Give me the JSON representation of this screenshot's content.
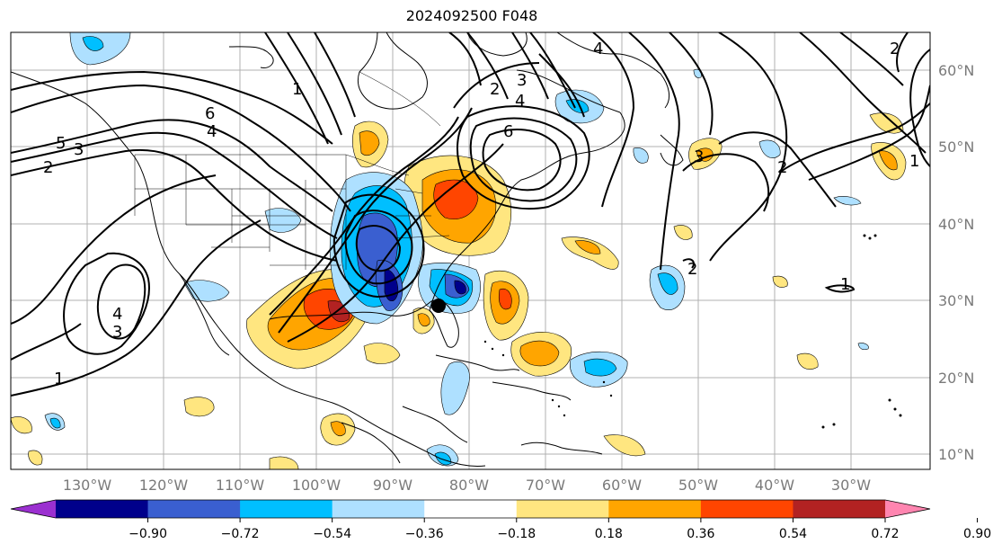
{
  "title": "2024092500 F048",
  "lat_labels": [
    "60°N",
    "50°N",
    "40°N",
    "30°N",
    "20°N",
    "10°N"
  ],
  "lon_labels": [
    "130°W",
    "120°W",
    "110°W",
    "100°W",
    "90°W",
    "80°W",
    "70°W",
    "60°W",
    "50°W",
    "40°W",
    "30°W"
  ],
  "colorbar": {
    "ticks": [
      "−0.90",
      "−0.72",
      "−0.54",
      "−0.36",
      "−0.18",
      "0.18",
      "0.36",
      "0.54",
      "0.72",
      "0.90"
    ],
    "colors": [
      "#9b30d0",
      "#00008b",
      "#3a5fd0",
      "#00bfff",
      "#aee0ff",
      "#ffffff",
      "#ffe680",
      "#ffa500",
      "#ff4500",
      "#b22222",
      "#ff85b0"
    ]
  },
  "contour_labels": [
    "6",
    "4",
    "5",
    "3",
    "2",
    "1",
    "6",
    "4",
    "3",
    "4",
    "2",
    "2",
    "3",
    "2",
    "1",
    "1",
    "4",
    "3",
    "2",
    "1"
  ],
  "center_marker": "hurricane-center"
}
